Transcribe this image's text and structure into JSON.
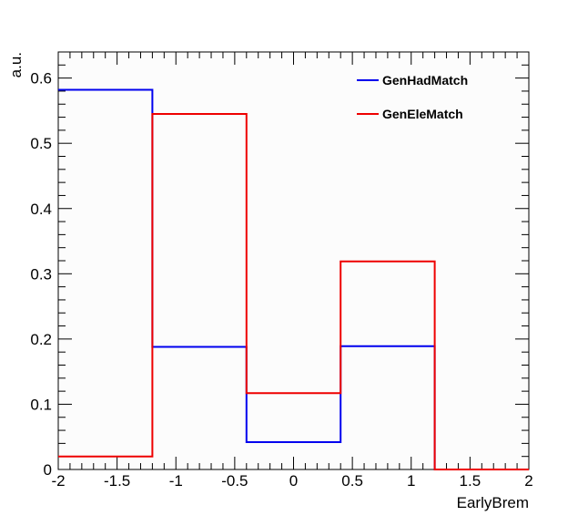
{
  "chart_data": {
    "type": "line",
    "title": "",
    "xlabel": "EarlyBrem",
    "ylabel": "a.u.",
    "xlim": [
      -2,
      2
    ],
    "ylim": [
      0,
      0.64
    ],
    "bin_edges": [
      -2,
      -1.2,
      -0.4,
      0.4,
      1.2,
      2
    ],
    "x_ticks": [
      -2,
      -1.5,
      -1,
      -0.5,
      0,
      0.5,
      1,
      1.5,
      2
    ],
    "x_tick_labels": [
      "-2",
      "-1.5",
      "-1",
      "-0.5",
      "0",
      "0.5",
      "1",
      "1.5",
      "2"
    ],
    "y_ticks": [
      0,
      0.1,
      0.2,
      0.3,
      0.4,
      0.5,
      0.6
    ],
    "y_tick_labels": [
      "0",
      "0.1",
      "0.2",
      "0.3",
      "0.4",
      "0.5",
      "0.6"
    ],
    "grid": false,
    "legend_position": "top-right",
    "series": [
      {
        "name": "GenHadMatch",
        "color": "#0000ee",
        "values": [
          0.582,
          0.188,
          0.042,
          0.189,
          0.0
        ]
      },
      {
        "name": "GenEleMatch",
        "color": "#ee0000",
        "values": [
          0.02,
          0.545,
          0.117,
          0.319,
          0.0
        ]
      }
    ]
  }
}
